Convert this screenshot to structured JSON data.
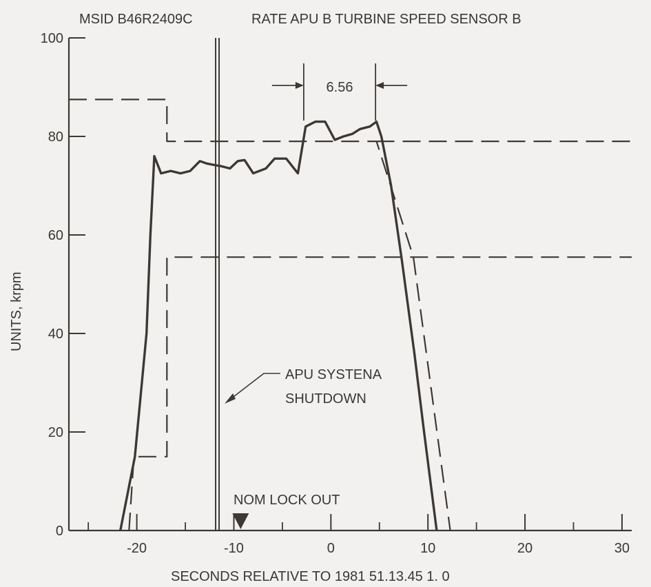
{
  "chart_data": {
    "type": "line",
    "title_msid": "MSID B46R2409C",
    "title": "RATE APU B TURBINE SPEED SENSOR B",
    "xlabel": "SECONDS RELATIVE TO 1981 51.13.45 1. 0",
    "ylabel": "UNITS, krpm",
    "xlim": [
      -27,
      31
    ],
    "ylim": [
      0,
      100
    ],
    "x_ticks": [
      -20,
      -10,
      0,
      10,
      20,
      30
    ],
    "x_tick_labels": [
      "-20",
      "-10",
      "0",
      "10",
      "20",
      "30"
    ],
    "y_ticks": [
      0,
      20,
      40,
      60,
      80,
      100
    ],
    "y_tick_labels": [
      "0",
      "20",
      "40",
      "60",
      "80",
      "100"
    ],
    "x_minor_ticks": [
      -25,
      -15,
      -5,
      5,
      15,
      25
    ],
    "grid": false,
    "series": [
      {
        "style": "solid",
        "points": [
          [
            -21.7,
            0
          ],
          [
            -20.2,
            15
          ],
          [
            -19.0,
            40
          ],
          [
            -18.6,
            60
          ],
          [
            -18.2,
            76
          ],
          [
            -17.5,
            72.5
          ],
          [
            -16.5,
            73
          ],
          [
            -15.5,
            72.5
          ],
          [
            -14.5,
            73
          ],
          [
            -13.5,
            75
          ],
          [
            -12.8,
            74.5
          ],
          [
            -12.0,
            74.2
          ],
          [
            -11.4,
            74
          ],
          [
            -10.4,
            73.5
          ],
          [
            -9.6,
            75
          ],
          [
            -8.9,
            75.2
          ],
          [
            -8.0,
            72.5
          ],
          [
            -6.7,
            73.5
          ],
          [
            -5.8,
            75.5
          ],
          [
            -4.6,
            75.5
          ],
          [
            -3.4,
            72.5
          ],
          [
            -2.6,
            82
          ],
          [
            -1.6,
            83
          ],
          [
            -0.6,
            83
          ],
          [
            0.4,
            79.3
          ],
          [
            1.3,
            80
          ],
          [
            2.2,
            80.5
          ],
          [
            3.0,
            81.5
          ],
          [
            4.0,
            82
          ],
          [
            4.7,
            83
          ],
          [
            5.2,
            80
          ],
          [
            6.2,
            70
          ],
          [
            7.3,
            55
          ],
          [
            8.6,
            36
          ],
          [
            9.6,
            20
          ],
          [
            10.9,
            0
          ]
        ]
      },
      {
        "style": "dashed",
        "points": [
          [
            -20.8,
            0
          ],
          [
            -20.3,
            15
          ],
          [
            -16.9,
            15
          ],
          [
            -16.9,
            55.5
          ],
          [
            31,
            55.5
          ]
        ]
      },
      {
        "style": "dashed",
        "points": [
          [
            -27,
            87.5
          ],
          [
            -16.9,
            87.5
          ],
          [
            -16.9,
            79
          ],
          [
            4.7,
            79
          ],
          [
            8.5,
            55.5
          ],
          [
            12.3,
            0
          ]
        ]
      },
      {
        "style": "dashed",
        "points": [
          [
            4.7,
            79
          ],
          [
            31,
            79
          ]
        ]
      }
    ],
    "annotations": {
      "shutdown_label_line1": "APU SYSTENA",
      "shutdown_label_line2": "SHUTDOWN",
      "shutdown_x": -11.7,
      "lockout_label": "NOM LOCK OUT",
      "lockout_x": -9.3,
      "interval_label": "6.56",
      "interval_start": -2.8,
      "interval_end": 4.6
    }
  }
}
